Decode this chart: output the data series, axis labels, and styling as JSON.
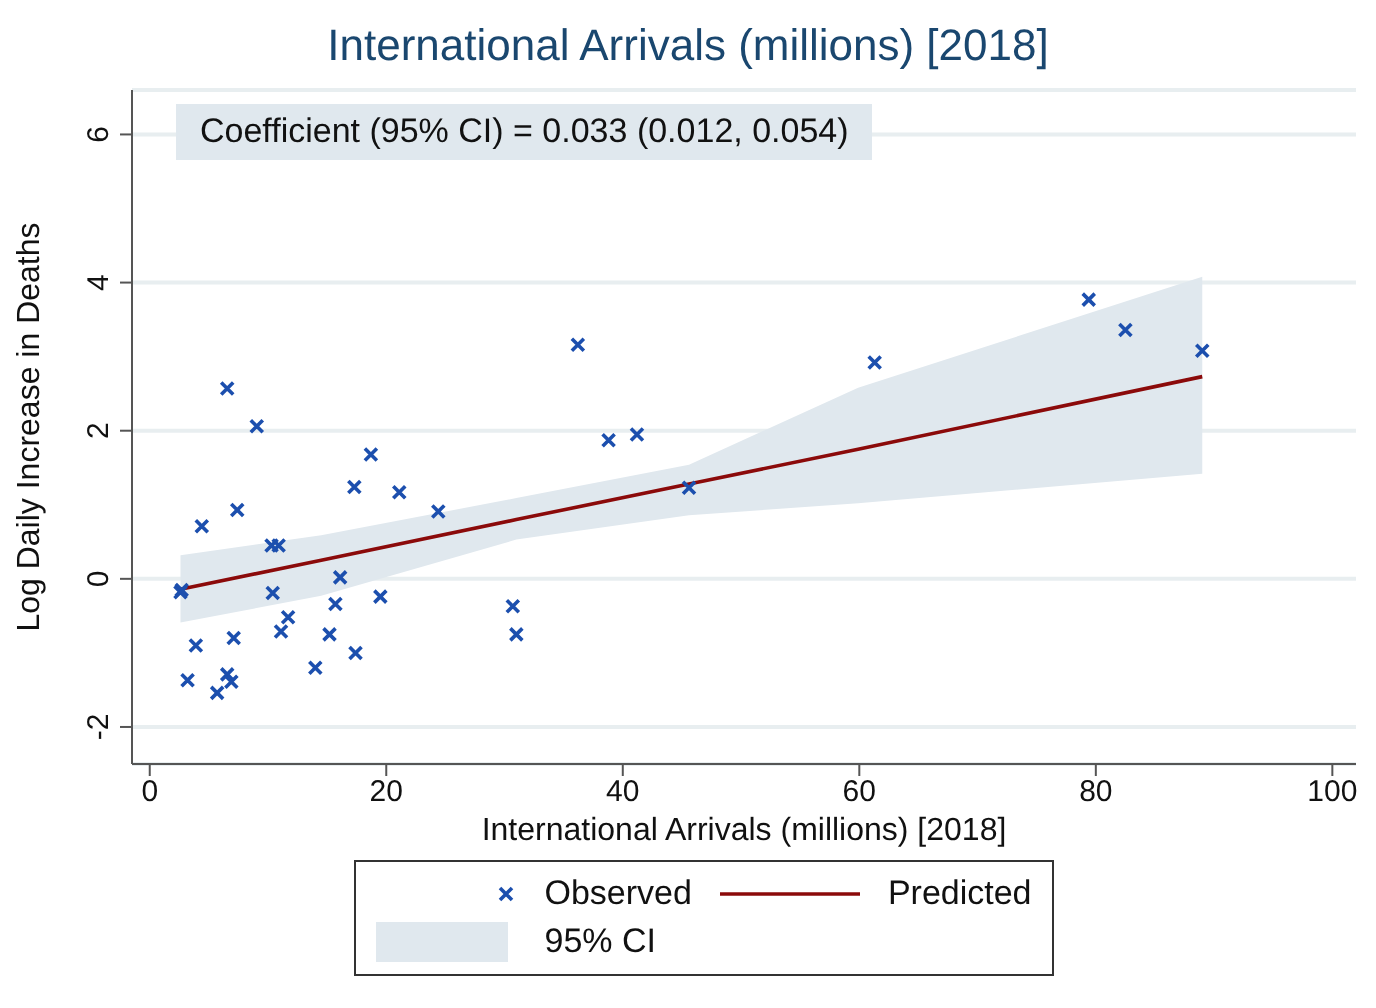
{
  "chart_data": {
    "type": "scatter",
    "title": "International Arrivals (millions) [2018]",
    "xlabel": "International Arrivals (millions) [2018]",
    "ylabel": "Log Daily Increase in Deaths",
    "annotations": [
      "Coefficient (95% CI) = 0.033 (0.012, 0.054)",
      "95% CI"
    ],
    "xlim": [
      -1.5,
      102
    ],
    "xticks": [
      0,
      20,
      40,
      60,
      80,
      100
    ],
    "ylim": [
      -2.5,
      6.6
    ],
    "yticks": [
      -2,
      0,
      2,
      4,
      6
    ],
    "grid": "y",
    "legend": "bottom",
    "series": [
      {
        "name": "Observed",
        "color": "#1c4fae",
        "marker": "cross",
        "x": [
          6.55,
          9.05,
          18.7,
          17.3,
          21.1,
          24.4,
          7.4,
          4.4,
          10.3,
          10.9,
          2.6,
          2.7,
          10.4,
          16.1,
          15.7,
          19.5,
          11.7,
          11.1,
          3.9,
          7.1,
          15.2,
          17.4,
          14.0,
          3.2,
          6.55,
          6.9,
          5.7,
          30.7,
          31.0,
          36.2,
          38.8,
          41.2,
          45.6,
          61.3,
          79.4,
          82.5,
          89.0
        ],
        "values": [
          2.57,
          2.06,
          1.68,
          1.24,
          1.17,
          0.91,
          0.93,
          0.71,
          0.45,
          0.45,
          -0.18,
          -0.15,
          -0.19,
          0.02,
          -0.34,
          -0.24,
          -0.52,
          -0.71,
          -0.9,
          -0.8,
          -0.75,
          -1.0,
          -1.2,
          -1.37,
          -1.29,
          -1.39,
          -1.54,
          -0.37,
          -0.75,
          3.16,
          1.87,
          1.95,
          1.23,
          2.92,
          3.77,
          3.36,
          3.08
        ]
      },
      {
        "name": "Predicted",
        "type": "line",
        "color": "#8b0a0a",
        "marker": "none",
        "x": [
          2.6,
          14.5,
          31,
          45.6,
          59.9,
          89
        ],
        "values": [
          -0.14,
          0.25,
          0.8,
          1.28,
          1.75,
          2.73
        ],
        "lower": [
          -0.59,
          -0.23,
          0.53,
          0.86,
          1.02,
          1.42
        ],
        "upper": [
          0.32,
          0.59,
          1.09,
          1.54,
          2.58,
          4.08
        ]
      }
    ]
  }
}
